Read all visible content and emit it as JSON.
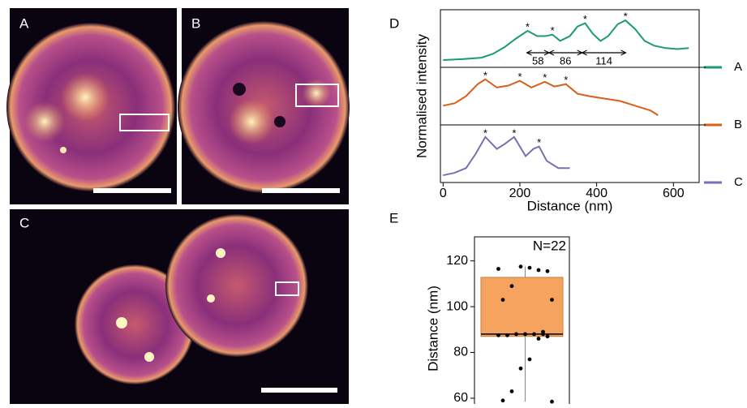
{
  "images": [
    {
      "label": "A"
    },
    {
      "label": "B"
    },
    {
      "label": "C"
    }
  ],
  "chart_data": [
    {
      "type": "line",
      "panel": "D",
      "xlabel": "Distance (nm)",
      "ylabel": "Normalised intensity",
      "xlim": [
        -7,
        667
      ],
      "xticks": [
        0,
        200,
        400,
        600
      ],
      "ylim": [
        0,
        1
      ],
      "peak_label": "*",
      "series": [
        {
          "name": "A",
          "color": "#1a9a78",
          "x": [
            0,
            50,
            100,
            130,
            160,
            190,
            220,
            245,
            265,
            285,
            305,
            330,
            350,
            370,
            390,
            410,
            430,
            455,
            475,
            500,
            525,
            550,
            580,
            610,
            640
          ],
          "values": [
            0.05,
            0.07,
            0.1,
            0.18,
            0.32,
            0.5,
            0.66,
            0.55,
            0.55,
            0.58,
            0.45,
            0.55,
            0.75,
            0.82,
            0.6,
            0.45,
            0.55,
            0.8,
            0.88,
            0.7,
            0.45,
            0.35,
            0.3,
            0.28,
            0.3
          ],
          "peaks": [
            220,
            285,
            370,
            475
          ]
        },
        {
          "name": "B",
          "color": "#d95f18",
          "x": [
            0,
            30,
            60,
            90,
            110,
            140,
            170,
            200,
            230,
            265,
            290,
            320,
            350,
            380,
            420,
            460,
            500,
            540,
            560
          ],
          "values": [
            0.3,
            0.35,
            0.5,
            0.75,
            0.85,
            0.68,
            0.72,
            0.82,
            0.68,
            0.8,
            0.7,
            0.75,
            0.55,
            0.5,
            0.45,
            0.4,
            0.3,
            0.2,
            0.1
          ],
          "peaks": [
            110,
            200,
            265,
            320
          ]
        },
        {
          "name": "C",
          "color": "#7570b3",
          "x": [
            0,
            30,
            60,
            85,
            110,
            140,
            160,
            185,
            215,
            235,
            250,
            270,
            300,
            330
          ],
          "values": [
            0.05,
            0.1,
            0.2,
            0.5,
            0.85,
            0.6,
            0.7,
            0.85,
            0.45,
            0.6,
            0.65,
            0.35,
            0.2,
            0.2
          ],
          "peaks": [
            110,
            185,
            250
          ]
        }
      ],
      "spacings": [
        {
          "start": 218,
          "value": 58
        },
        {
          "start": 276,
          "value": 86
        },
        {
          "start": 362,
          "value": 114
        }
      ]
    },
    {
      "type": "box",
      "panel": "E",
      "ylabel": "Distance (nm)",
      "annotation": "N=22",
      "ylim": [
        57.5,
        130.5
      ],
      "yticks": [
        60,
        80,
        100,
        120
      ],
      "color": "#f5a35e",
      "box": {
        "q1": 87,
        "median": 88,
        "q3": 112.8,
        "whisker_low": 58.5,
        "whisker_high": 117.5
      },
      "points": [
        116.5,
        115.5,
        116,
        117,
        117.5,
        109,
        103,
        103,
        89,
        88,
        88,
        88,
        87.5,
        87.5,
        87,
        86,
        77,
        73,
        63,
        59,
        58.5,
        88
      ]
    }
  ]
}
